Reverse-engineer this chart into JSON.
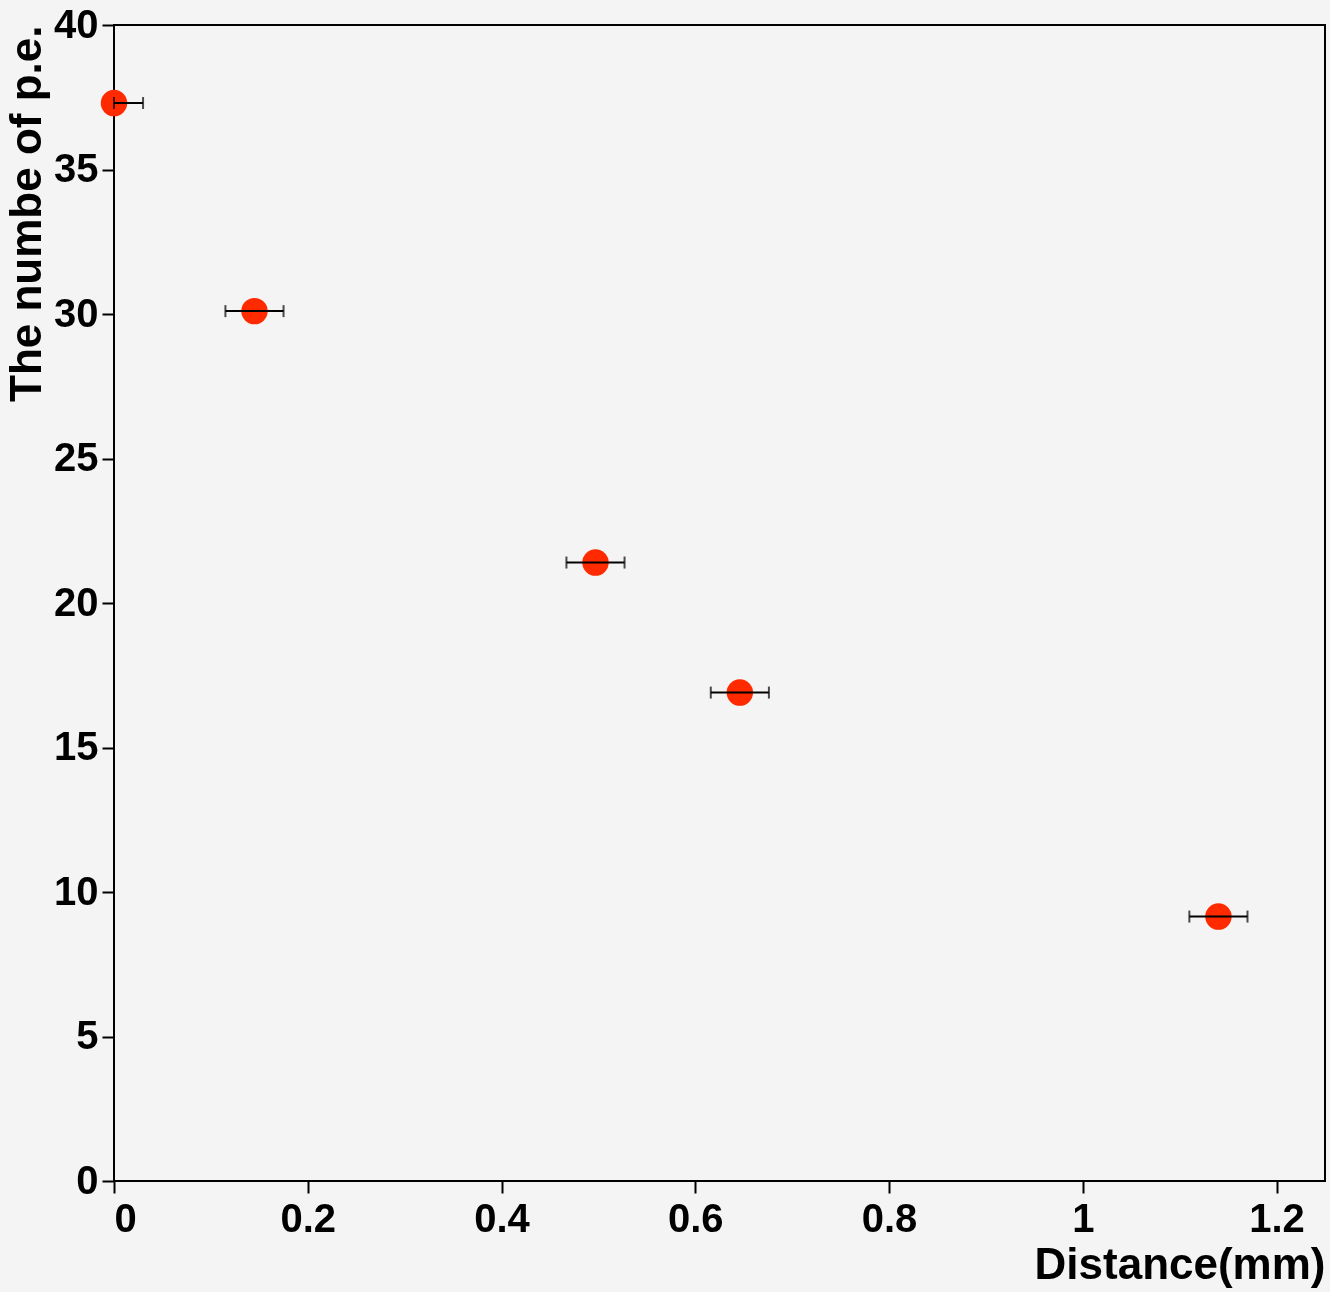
{
  "chart_data": {
    "type": "scatter",
    "xlabel": "Distance(mm)",
    "ylabel": "The numbe of p.e.",
    "x": [
      0,
      0.145,
      0.497,
      0.646,
      1.14
    ],
    "series": [
      {
        "color": "#ff2a00",
        "values": [
          37.3,
          30.1,
          21.4,
          16.9,
          9.15
        ],
        "xerrors": [
          [
            0,
            0.03
          ],
          0.03,
          0.03,
          0.03,
          0.03
        ]
      }
    ],
    "xlim": [
      0,
      1.25
    ],
    "ylim": [
      0,
      40
    ],
    "xticks": [
      0,
      0.2,
      0.4,
      0.6,
      0.8,
      1,
      1.2
    ],
    "yticks": [
      0,
      5,
      10,
      15,
      20,
      25,
      30,
      35,
      40
    ],
    "marker": "circle",
    "grid": false
  }
}
